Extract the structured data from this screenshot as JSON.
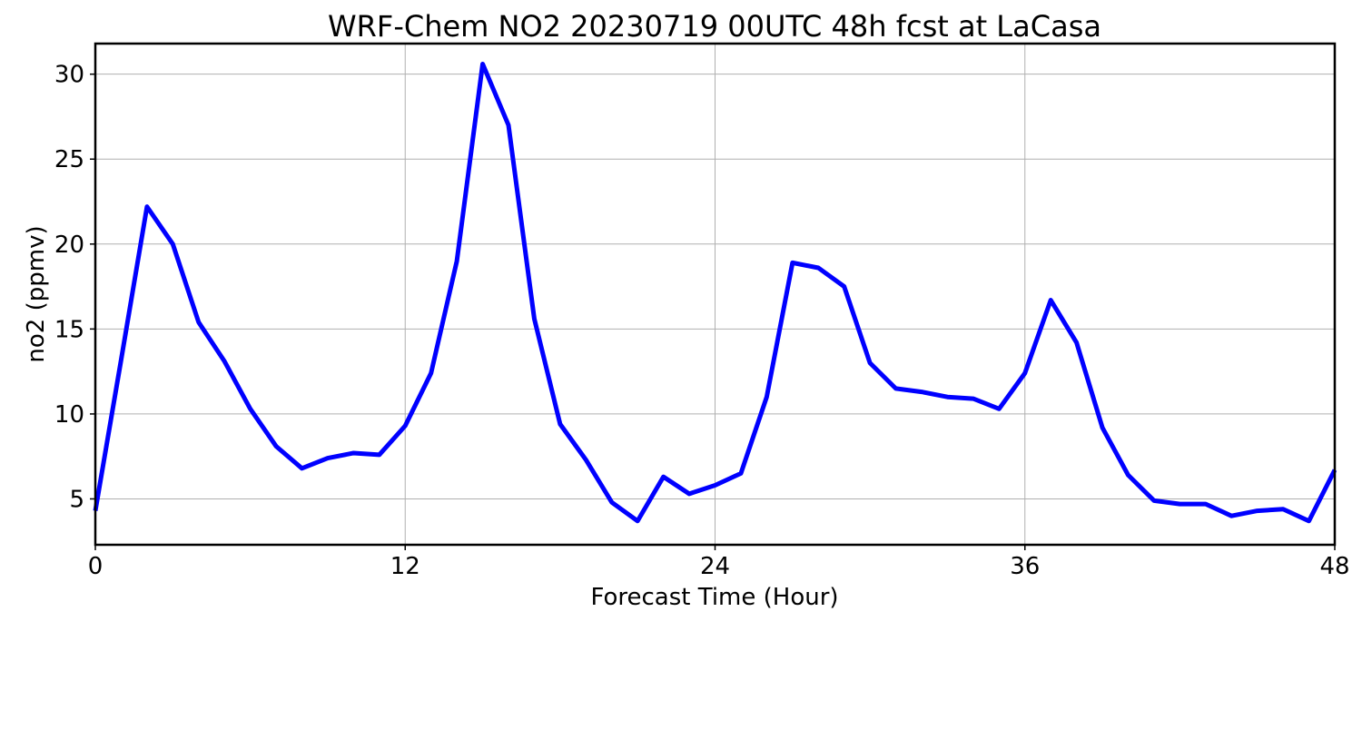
{
  "colors": {
    "line": "#0000ff",
    "grid": "#b0b0b0",
    "axis": "#000000",
    "background": "#ffffff"
  },
  "chart_data": {
    "type": "line",
    "title": "WRF-Chem NO2  20230719 00UTC 48h fcst at LaCasa",
    "xlabel": "Forecast Time (Hour)",
    "ylabel": "no2  (ppmv)",
    "xlim": [
      0,
      48
    ],
    "ylim": [
      2.3,
      31.8
    ],
    "xticks": [
      0,
      12,
      24,
      36,
      48
    ],
    "yticks": [
      5,
      10,
      15,
      20,
      25,
      30
    ],
    "grid": true,
    "series": [
      {
        "x": [
          0,
          1,
          2,
          3,
          4,
          5,
          6,
          7,
          8,
          9,
          10,
          11,
          12,
          13,
          14,
          15,
          16,
          17,
          18,
          19,
          20,
          21,
          22,
          23,
          24,
          25,
          26,
          27,
          28,
          29,
          30,
          31,
          32,
          33,
          34,
          35,
          36,
          37,
          38,
          39,
          40,
          41,
          42,
          43,
          44,
          45,
          46,
          47,
          48
        ],
        "values": [
          4.3,
          13.2,
          22.2,
          20.0,
          15.4,
          13.1,
          10.3,
          8.1,
          6.8,
          7.4,
          7.7,
          7.6,
          9.3,
          12.4,
          19.0,
          30.6,
          27.0,
          15.6,
          9.4,
          7.3,
          4.8,
          3.7,
          6.3,
          5.3,
          5.8,
          6.5,
          11.0,
          18.9,
          18.6,
          17.5,
          13.0,
          11.5,
          11.3,
          11.0,
          10.9,
          10.3,
          12.4,
          16.7,
          14.2,
          9.2,
          6.4,
          4.9,
          4.7,
          4.7,
          4.0,
          4.3,
          4.4,
          3.7,
          6.7
        ]
      }
    ]
  }
}
